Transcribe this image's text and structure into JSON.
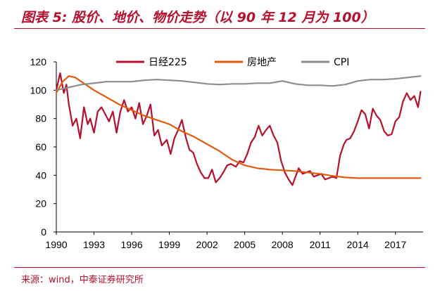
{
  "title": "图表 5: 股价、地价、物价走势（以 90 年 12 月为 100）",
  "source": "来源：wind，中泰证券研究所",
  "colors": {
    "nikkei": "#b5102d",
    "land": "#e05a10",
    "cpi": "#8c8c8c",
    "accent": "#b5102d"
  },
  "chart_data": {
    "type": "line",
    "title": "股价、地价、物价走势（以 90 年 12 月为 100）",
    "xlabel": "",
    "ylabel": "",
    "xlim": [
      1990,
      2019.2
    ],
    "ylim": [
      0,
      120
    ],
    "yticks": [
      0,
      20,
      40,
      60,
      80,
      100,
      120
    ],
    "xticks": [
      "1990",
      "1993",
      "1996",
      "1999",
      "2002",
      "2005",
      "2008",
      "2011",
      "2014",
      "2017"
    ],
    "legend_position": "top",
    "series": [
      {
        "name": "日经225",
        "key": "nikkei",
        "x": [
          1990,
          1990.3,
          1990.6,
          1990.8,
          1991.0,
          1991.3,
          1991.6,
          1991.9,
          1992.2,
          1992.5,
          1992.7,
          1993.0,
          1993.3,
          1993.6,
          1993.9,
          1994.2,
          1994.5,
          1994.8,
          1995.1,
          1995.4,
          1995.7,
          1996.0,
          1996.3,
          1996.6,
          1996.9,
          1997.2,
          1997.5,
          1997.8,
          1998.1,
          1998.4,
          1998.8,
          1999.1,
          1999.4,
          1999.7,
          2000.0,
          2000.3,
          2000.6,
          2000.9,
          2001.2,
          2001.5,
          2001.8,
          2002.1,
          2002.4,
          2002.7,
          2003.0,
          2003.3,
          2003.6,
          2003.9,
          2004.3,
          2004.6,
          2004.9,
          2005.2,
          2005.5,
          2005.8,
          2006.1,
          2006.4,
          2006.7,
          2007.0,
          2007.3,
          2007.6,
          2007.9,
          2008.2,
          2008.5,
          2008.8,
          2009.0,
          2009.3,
          2009.6,
          2009.9,
          2010.2,
          2010.5,
          2010.8,
          2011.1,
          2011.4,
          2011.7,
          2012.0,
          2012.3,
          2012.6,
          2012.9,
          2013.1,
          2013.4,
          2013.7,
          2014.0,
          2014.3,
          2014.6,
          2014.9,
          2015.2,
          2015.5,
          2015.8,
          2016.1,
          2016.4,
          2016.7,
          2017.0,
          2017.3,
          2017.6,
          2017.9,
          2018.2,
          2018.5,
          2018.8,
          2019.0
        ],
        "values": [
          100,
          112,
          98,
          104,
          90,
          75,
          80,
          66,
          88,
          76,
          80,
          70,
          85,
          88,
          83,
          78,
          85,
          70,
          85,
          93,
          85,
          88,
          80,
          91,
          76,
          82,
          90,
          68,
          72,
          61,
          65,
          55,
          66,
          72,
          79,
          67,
          58,
          56,
          48,
          42,
          38,
          38,
          44,
          35,
          38,
          42,
          47,
          48,
          46,
          50,
          49,
          55,
          63,
          67,
          75,
          68,
          72,
          75,
          68,
          63,
          50,
          42,
          37,
          33,
          38,
          45,
          41,
          42,
          43,
          39,
          40,
          41,
          37,
          38,
          39,
          38,
          54,
          62,
          65,
          66,
          71,
          78,
          86,
          83,
          73,
          87,
          82,
          79,
          71,
          68,
          69,
          78,
          81,
          92,
          98,
          93,
          96,
          88,
          99
        ]
      },
      {
        "name": "房地产",
        "key": "land",
        "x": [
          1990,
          1990.5,
          1991,
          1991.5,
          1992,
          1993,
          1994,
          1995,
          1996,
          1997,
          1998,
          1999,
          2000,
          2001,
          2002,
          2003,
          2004,
          2005,
          2006,
          2007,
          2008,
          2009,
          2010,
          2011,
          2012,
          2013,
          2014,
          2015,
          2016,
          2017,
          2018,
          2019
        ],
        "values": [
          98,
          106,
          110,
          109,
          106,
          100,
          95,
          90,
          86,
          82,
          79,
          76,
          71,
          67,
          62,
          57,
          51,
          47,
          45,
          44,
          43.5,
          43,
          42,
          41,
          39.5,
          38.5,
          38,
          38,
          38,
          38,
          38,
          38
        ]
      },
      {
        "name": "CPI",
        "key": "cpi",
        "x": [
          1990,
          1991,
          1992,
          1993,
          1994,
          1995,
          1996,
          1997,
          1998,
          1999,
          2000,
          2001,
          2002,
          2003,
          2004,
          2005,
          2006,
          2007,
          2008,
          2009,
          2010,
          2011,
          2012,
          2013,
          2014,
          2015,
          2016,
          2017,
          2018,
          2019
        ],
        "values": [
          100,
          102,
          104,
          105,
          106,
          106,
          106,
          107,
          107.5,
          107,
          106.5,
          105.5,
          104.5,
          104,
          104.5,
          104.5,
          105,
          105,
          106.5,
          104.5,
          103.5,
          103.5,
          103,
          104,
          106.5,
          107.5,
          107.5,
          108,
          109,
          110
        ]
      }
    ]
  }
}
